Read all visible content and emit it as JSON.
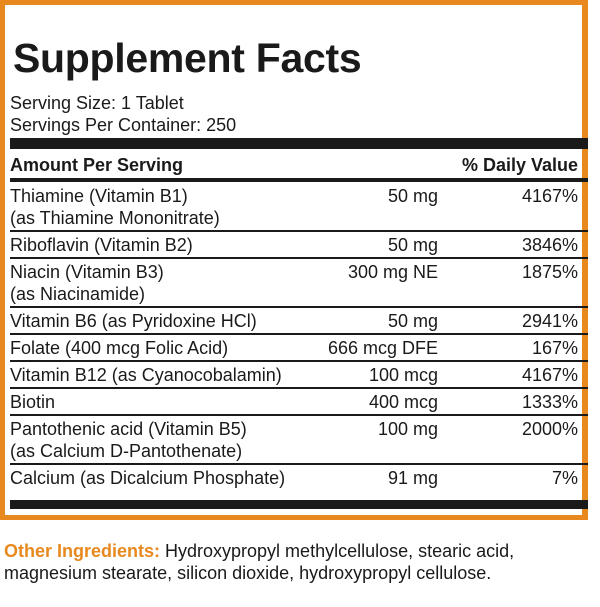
{
  "title": "Supplement Facts",
  "serving_size": "Serving Size: 1 Tablet",
  "servings_per_container": "Servings Per Container: 250",
  "header": {
    "amount": "Amount Per Serving",
    "dv": "% Daily Value"
  },
  "rows": [
    {
      "name1": "Thiamine (Vitamin B1)",
      "name2": "(as Thiamine Mononitrate)",
      "amount": "50 mg",
      "dv": "4167%"
    },
    {
      "name1": "Riboflavin (Vitamin B2)",
      "name2": "",
      "amount": "50 mg",
      "dv": "3846%"
    },
    {
      "name1": "Niacin (Vitamin B3)",
      "name2": "(as Niacinamide)",
      "amount": "300 mg NE",
      "dv": "1875%"
    },
    {
      "name1": "Vitamin B6 (as Pyridoxine HCl)",
      "name2": "",
      "amount": "50 mg",
      "dv": "2941%"
    },
    {
      "name1": "Folate (400 mcg Folic Acid)",
      "name2": "",
      "amount": "666 mcg DFE",
      "dv": "167%"
    },
    {
      "name1": "Vitamin B12 (as Cyanocobalamin)",
      "name2": "",
      "amount": "100 mcg",
      "dv": "4167%"
    },
    {
      "name1": "Biotin",
      "name2": "",
      "amount": "400 mcg",
      "dv": "1333%"
    },
    {
      "name1": "Pantothenic acid (Vitamin B5)",
      "name2": "(as Calcium D-Pantothenate)",
      "amount": "100 mg",
      "dv": "2000%"
    },
    {
      "name1": "Calcium (as Dicalcium Phosphate)",
      "name2": "",
      "amount": "91 mg",
      "dv": "7%"
    }
  ],
  "other_ingredients": {
    "label": "Other Ingredients:",
    "text": " Hydroxypropyl methylcellulose, stearic acid, magnesium stearate, silicon dioxide, hydroxypropyl cellulose."
  },
  "colors": {
    "accent": "#e8891f",
    "text": "#1a1a1a"
  }
}
